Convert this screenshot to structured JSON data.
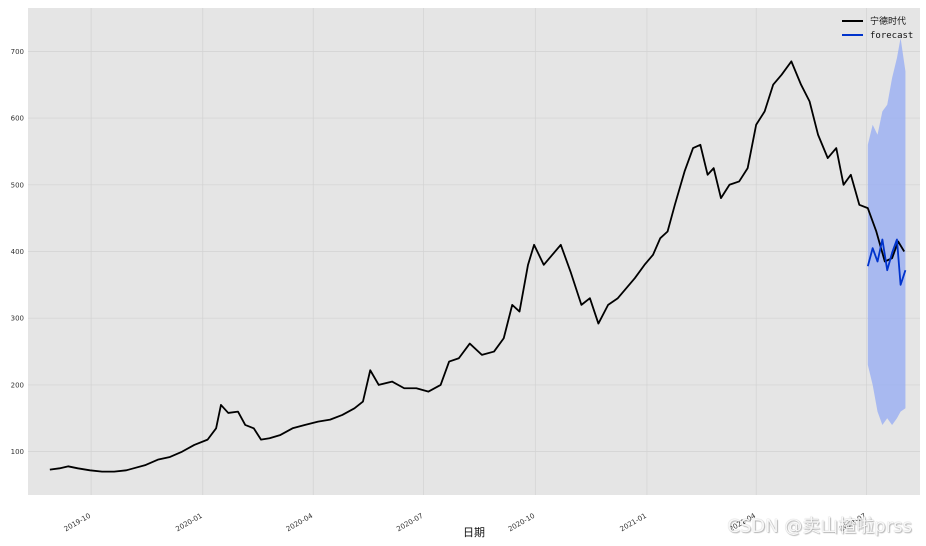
{
  "chart_data": {
    "type": "line",
    "title": "",
    "xlabel": "日期",
    "ylabel": "",
    "grid": true,
    "legend_position": "top-right",
    "xlim": [
      "2019-08-10",
      "2021-08-14"
    ],
    "ylim": [
      35,
      765
    ],
    "x_ticks": [
      {
        "date": "2019-10-01",
        "label": "2019-10"
      },
      {
        "date": "2020-01-01",
        "label": "2020-01"
      },
      {
        "date": "2020-04-01",
        "label": "2020-04"
      },
      {
        "date": "2020-07-01",
        "label": "2020-07"
      },
      {
        "date": "2020-10-01",
        "label": "2020-10"
      },
      {
        "date": "2021-01-01",
        "label": "2021-01"
      },
      {
        "date": "2021-04-01",
        "label": "2021-04"
      },
      {
        "date": "2021-07-01",
        "label": "2021-07"
      }
    ],
    "y_ticks": [
      100,
      200,
      300,
      400,
      500,
      600,
      700
    ],
    "series": [
      {
        "name": "宁德时代",
        "color": "#000000",
        "points": [
          [
            "2019-08-28",
            73
          ],
          [
            "2019-09-05",
            75
          ],
          [
            "2019-09-12",
            78
          ],
          [
            "2019-09-20",
            75
          ],
          [
            "2019-09-30",
            72
          ],
          [
            "2019-10-10",
            70
          ],
          [
            "2019-10-20",
            70
          ],
          [
            "2019-10-30",
            72
          ],
          [
            "2019-11-05",
            75
          ],
          [
            "2019-11-15",
            80
          ],
          [
            "2019-11-25",
            88
          ],
          [
            "2019-12-05",
            92
          ],
          [
            "2019-12-15",
            100
          ],
          [
            "2019-12-25",
            110
          ],
          [
            "2020-01-05",
            118
          ],
          [
            "2020-01-12",
            135
          ],
          [
            "2020-01-16",
            170
          ],
          [
            "2020-01-22",
            158
          ],
          [
            "2020-01-30",
            160
          ],
          [
            "2020-02-05",
            140
          ],
          [
            "2020-02-12",
            135
          ],
          [
            "2020-02-18",
            118
          ],
          [
            "2020-02-25",
            120
          ],
          [
            "2020-03-05",
            125
          ],
          [
            "2020-03-15",
            135
          ],
          [
            "2020-03-25",
            140
          ],
          [
            "2020-04-05",
            145
          ],
          [
            "2020-04-15",
            148
          ],
          [
            "2020-04-25",
            155
          ],
          [
            "2020-05-05",
            165
          ],
          [
            "2020-05-12",
            175
          ],
          [
            "2020-05-18",
            222
          ],
          [
            "2020-05-25",
            200
          ],
          [
            "2020-06-05",
            205
          ],
          [
            "2020-06-15",
            195
          ],
          [
            "2020-06-25",
            195
          ],
          [
            "2020-07-05",
            190
          ],
          [
            "2020-07-15",
            200
          ],
          [
            "2020-07-22",
            235
          ],
          [
            "2020-07-30",
            240
          ],
          [
            "2020-08-08",
            262
          ],
          [
            "2020-08-18",
            245
          ],
          [
            "2020-08-28",
            250
          ],
          [
            "2020-09-05",
            270
          ],
          [
            "2020-09-12",
            320
          ],
          [
            "2020-09-18",
            310
          ],
          [
            "2020-09-25",
            380
          ],
          [
            "2020-09-30",
            410
          ],
          [
            "2020-10-08",
            380
          ],
          [
            "2020-10-15",
            395
          ],
          [
            "2020-10-22",
            410
          ],
          [
            "2020-10-30",
            370
          ],
          [
            "2020-11-08",
            320
          ],
          [
            "2020-11-15",
            330
          ],
          [
            "2020-11-22",
            292
          ],
          [
            "2020-11-30",
            320
          ],
          [
            "2020-12-08",
            330
          ],
          [
            "2020-12-15",
            345
          ],
          [
            "2020-12-22",
            360
          ],
          [
            "2020-12-30",
            380
          ],
          [
            "2021-01-06",
            395
          ],
          [
            "2021-01-12",
            420
          ],
          [
            "2021-01-18",
            430
          ],
          [
            "2021-01-24",
            470
          ],
          [
            "2021-02-01",
            520
          ],
          [
            "2021-02-08",
            555
          ],
          [
            "2021-02-14",
            560
          ],
          [
            "2021-02-20",
            515
          ],
          [
            "2021-02-25",
            525
          ],
          [
            "2021-03-03",
            480
          ],
          [
            "2021-03-10",
            500
          ],
          [
            "2021-03-18",
            505
          ],
          [
            "2021-03-25",
            525
          ],
          [
            "2021-04-01",
            590
          ],
          [
            "2021-04-08",
            610
          ],
          [
            "2021-04-15",
            650
          ],
          [
            "2021-04-22",
            665
          ],
          [
            "2021-04-30",
            685
          ],
          [
            "2021-05-08",
            650
          ],
          [
            "2021-05-15",
            625
          ],
          [
            "2021-05-22",
            575
          ],
          [
            "2021-05-30",
            540
          ],
          [
            "2021-06-06",
            555
          ],
          [
            "2021-06-12",
            500
          ],
          [
            "2021-06-18",
            515
          ],
          [
            "2021-06-25",
            470
          ],
          [
            "2021-07-02",
            465
          ],
          [
            "2021-07-09",
            430
          ],
          [
            "2021-07-16",
            385
          ],
          [
            "2021-07-22",
            390
          ],
          [
            "2021-07-27",
            415
          ],
          [
            "2021-08-01",
            400
          ]
        ]
      },
      {
        "name": "forecast",
        "color": "#0033cc",
        "points": [
          [
            "2021-07-02",
            378
          ],
          [
            "2021-07-06",
            405
          ],
          [
            "2021-07-10",
            385
          ],
          [
            "2021-07-14",
            418
          ],
          [
            "2021-07-18",
            372
          ],
          [
            "2021-07-22",
            398
          ],
          [
            "2021-07-26",
            418
          ],
          [
            "2021-07-29",
            350
          ],
          [
            "2021-08-02",
            372
          ]
        ],
        "band": {
          "color": "#99aef2",
          "upper": [
            560,
            590,
            575,
            610,
            620,
            660,
            690,
            720,
            670
          ],
          "lower": [
            230,
            200,
            160,
            140,
            150,
            140,
            150,
            160,
            165
          ]
        }
      }
    ],
    "annotations": [
      "CSDN @卖山楂啦prss"
    ]
  }
}
